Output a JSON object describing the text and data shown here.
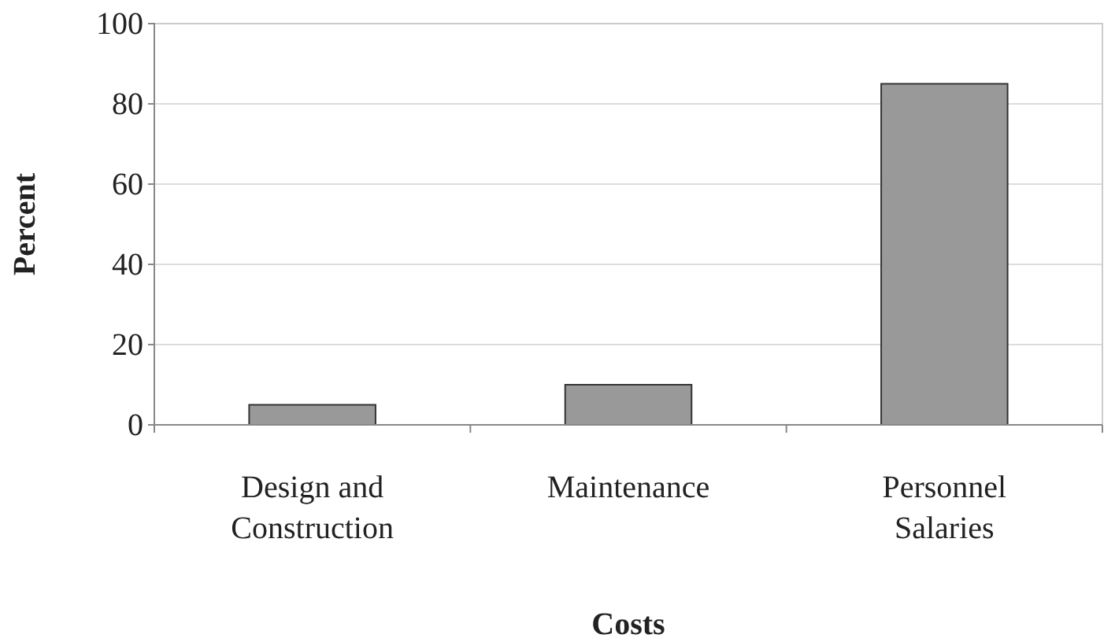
{
  "chart_data": {
    "type": "bar",
    "xlabel": "Costs",
    "ylabel": "Percent",
    "categories": [
      "Design and Construction",
      "Maintenance",
      "Personnel Salaries"
    ],
    "values": [
      5,
      10,
      85
    ],
    "color": "#999999",
    "ylim": [
      0,
      100
    ],
    "yticks": [
      0,
      20,
      40,
      60,
      80,
      100
    ],
    "grid": "y"
  }
}
